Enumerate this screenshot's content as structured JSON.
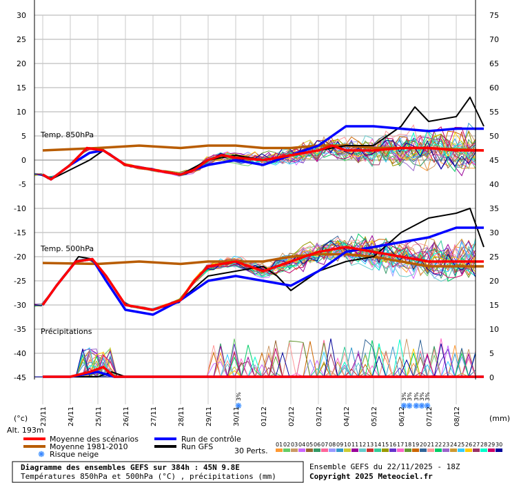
{
  "chart_data": {
    "type": "line",
    "left_axis": {
      "unit": "(°c)",
      "ticks": [
        30,
        25,
        20,
        15,
        10,
        5,
        0,
        -5,
        -10,
        -15,
        -20,
        -25,
        -30,
        -35,
        -40,
        -45
      ]
    },
    "right_axis": {
      "unit": "(mm)",
      "ticks": [
        75,
        70,
        65,
        60,
        55,
        50,
        45,
        40,
        35,
        30,
        25,
        20,
        15,
        10,
        5,
        0
      ]
    },
    "x_dates": [
      "23/11",
      "24/11",
      "25/11",
      "26/11",
      "27/11",
      "28/11",
      "29/11",
      "30/11",
      "01/12",
      "02/12",
      "03/12",
      "04/12",
      "05/12",
      "06/12",
      "07/12",
      "08/12"
    ],
    "panels": {
      "t850": "Temp. 850hPa",
      "t500": "Temp. 500hPa",
      "precip": "Précipitations"
    },
    "altitude": "Alt. 193m",
    "perts_label": "30 Perts.",
    "pert_numbers": [
      "01",
      "02",
      "03",
      "04",
      "05",
      "06",
      "07",
      "08",
      "09",
      "10",
      "11",
      "12",
      "13",
      "14",
      "15",
      "16",
      "17",
      "18",
      "19",
      "20",
      "21",
      "22",
      "23",
      "24",
      "25",
      "26",
      "27",
      "28",
      "29",
      "30"
    ],
    "pert_colors": [
      "#ff9933",
      "#66cc66",
      "#cc9966",
      "#cc66ff",
      "#996633",
      "#339966",
      "#ff6699",
      "#9999ff",
      "#3399cc",
      "#cccc33",
      "#990099",
      "#66cccc",
      "#cc3333",
      "#33cc99",
      "#999900",
      "#6633cc",
      "#ff66cc",
      "#669933",
      "#cc6600",
      "#336699",
      "#ff9999",
      "#00cc66",
      "#9966cc",
      "#cc9933",
      "#33ccff",
      "#ffcc00",
      "#993366",
      "#00ffcc",
      "#cc0066",
      "#000099"
    ],
    "snow_marks": [
      {
        "x_day": 7.1,
        "label": "3%"
      },
      {
        "x_day": 13.1,
        "label": "3%"
      },
      {
        "x_day": 13.3,
        "label": "3%"
      },
      {
        "x_day": 13.55,
        "label": "3%"
      },
      {
        "x_day": 13.75,
        "label": "3%"
      },
      {
        "x_day": 13.95,
        "label": "3%"
      }
    ],
    "series": [
      {
        "name": "Moyenne des scénarios",
        "color": "#ff0000",
        "role": "mean",
        "t850": [
          [
            0,
            -3
          ],
          [
            0.3,
            -4
          ],
          [
            1,
            -1
          ],
          [
            1.6,
            2.5
          ],
          [
            2.2,
            2
          ],
          [
            3,
            -1
          ],
          [
            4,
            -2
          ],
          [
            5,
            -3
          ],
          [
            5.5,
            -2
          ],
          [
            6,
            0
          ],
          [
            6.5,
            1
          ],
          [
            7,
            0.5
          ],
          [
            8,
            0
          ],
          [
            9,
            1
          ],
          [
            10,
            2
          ],
          [
            10.5,
            3
          ],
          [
            11,
            2
          ],
          [
            12,
            2
          ],
          [
            13,
            2.5
          ],
          [
            14,
            2.5
          ],
          [
            15,
            2
          ],
          [
            16,
            2
          ]
        ],
        "t500": [
          [
            0,
            -30
          ],
          [
            0.5,
            -26
          ],
          [
            1.2,
            -21
          ],
          [
            1.8,
            -20.5
          ],
          [
            2.3,
            -24
          ],
          [
            3,
            -30
          ],
          [
            4,
            -31
          ],
          [
            5,
            -29
          ],
          [
            5.5,
            -25
          ],
          [
            6,
            -22
          ],
          [
            7,
            -21
          ],
          [
            8,
            -23
          ],
          [
            9,
            -21
          ],
          [
            10,
            -19
          ],
          [
            11,
            -18
          ],
          [
            12,
            -19
          ],
          [
            13,
            -20
          ],
          [
            14,
            -21
          ],
          [
            15,
            -21
          ],
          [
            16,
            -21
          ]
        ],
        "precip": [
          [
            0,
            0
          ],
          [
            1,
            0
          ],
          [
            1.7,
            1
          ],
          [
            2.2,
            2
          ],
          [
            2.6,
            0
          ],
          [
            3,
            0
          ],
          [
            16,
            0
          ]
        ]
      },
      {
        "name": "Moyenne 1981-2010",
        "color": "#b85c00",
        "role": "climate",
        "t850": [
          [
            0,
            2
          ],
          [
            2,
            2.5
          ],
          [
            3.5,
            3
          ],
          [
            5,
            2.5
          ],
          [
            6,
            3
          ],
          [
            7,
            3
          ],
          [
            8,
            2.5
          ],
          [
            9,
            2.5
          ],
          [
            10,
            3
          ],
          [
            11,
            3
          ],
          [
            12,
            2.5
          ],
          [
            13,
            2.5
          ],
          [
            14,
            2.5
          ],
          [
            16,
            2
          ]
        ],
        "t500": [
          [
            0,
            -21.3
          ],
          [
            2,
            -21.5
          ],
          [
            3.5,
            -21
          ],
          [
            5,
            -21.5
          ],
          [
            6,
            -21
          ],
          [
            7,
            -21
          ],
          [
            8,
            -21
          ],
          [
            9,
            -20
          ],
          [
            10,
            -19.5
          ],
          [
            11,
            -19.5
          ],
          [
            12,
            -20
          ],
          [
            13,
            -21
          ],
          [
            14,
            -22
          ],
          [
            16,
            -22
          ]
        ]
      },
      {
        "name": "Run de contrôle",
        "color": "#0000ff",
        "role": "control",
        "t850": [
          [
            0,
            -3
          ],
          [
            0.3,
            -4
          ],
          [
            1,
            -1
          ],
          [
            1.7,
            1.5
          ],
          [
            2.2,
            2
          ],
          [
            3,
            -1
          ],
          [
            4,
            -2
          ],
          [
            5,
            -3
          ],
          [
            6,
            -1
          ],
          [
            7,
            0
          ],
          [
            8,
            -1
          ],
          [
            9,
            1
          ],
          [
            10,
            3
          ],
          [
            10.5,
            5
          ],
          [
            11,
            7
          ],
          [
            12,
            7
          ],
          [
            13,
            6.5
          ],
          [
            14,
            6
          ],
          [
            15,
            6.5
          ],
          [
            16,
            6.5
          ]
        ],
        "t500": [
          [
            0,
            -30
          ],
          [
            0.5,
            -26
          ],
          [
            1.2,
            -21
          ],
          [
            1.8,
            -20.5
          ],
          [
            2.3,
            -25
          ],
          [
            3,
            -31
          ],
          [
            4,
            -32
          ],
          [
            5,
            -29
          ],
          [
            5.5,
            -27
          ],
          [
            6,
            -25
          ],
          [
            7,
            -24
          ],
          [
            8,
            -25
          ],
          [
            9,
            -26
          ],
          [
            10,
            -23
          ],
          [
            11,
            -19
          ],
          [
            12,
            -18
          ],
          [
            13,
            -17
          ],
          [
            14,
            -16
          ],
          [
            15,
            -14
          ],
          [
            16,
            -14
          ]
        ],
        "precip": [
          [
            0,
            0
          ],
          [
            1,
            0
          ],
          [
            2,
            1
          ],
          [
            2.6,
            0
          ],
          [
            16,
            0
          ]
        ]
      },
      {
        "name": "Run GFS",
        "color": "#000000",
        "role": "gfs",
        "t850": [
          [
            0,
            -3
          ],
          [
            0.3,
            -4
          ],
          [
            1,
            -2
          ],
          [
            1.7,
            0
          ],
          [
            2.2,
            2
          ],
          [
            3,
            -1
          ],
          [
            4,
            -2
          ],
          [
            5,
            -3
          ],
          [
            6,
            0
          ],
          [
            7,
            1
          ],
          [
            8,
            0
          ],
          [
            9,
            1
          ],
          [
            10,
            2
          ],
          [
            11,
            3
          ],
          [
            12,
            3
          ],
          [
            13,
            7
          ],
          [
            13.5,
            11
          ],
          [
            14,
            8
          ],
          [
            15,
            9
          ],
          [
            15.5,
            13
          ],
          [
            16,
            7
          ]
        ],
        "t500": [
          [
            0,
            -30
          ],
          [
            0.5,
            -26
          ],
          [
            1.3,
            -20
          ],
          [
            1.8,
            -20.5
          ],
          [
            2.3,
            -24
          ],
          [
            3,
            -30
          ],
          [
            4,
            -31
          ],
          [
            5,
            -29
          ],
          [
            6,
            -24
          ],
          [
            7,
            -23
          ],
          [
            8,
            -22
          ],
          [
            8.5,
            -24
          ],
          [
            9,
            -27
          ],
          [
            10,
            -23
          ],
          [
            11,
            -21
          ],
          [
            12,
            -20
          ],
          [
            13,
            -15
          ],
          [
            14,
            -12
          ],
          [
            15,
            -11
          ],
          [
            15.5,
            -10
          ],
          [
            16,
            -18
          ]
        ],
        "precip": [
          [
            0,
            0
          ],
          [
            2,
            0
          ],
          [
            2.5,
            1
          ],
          [
            3,
            0
          ],
          [
            16,
            0
          ]
        ]
      }
    ]
  },
  "legend": {
    "mean": "Moyenne des scénarios",
    "climate": "Moyenne 1981-2010",
    "snow": "Risque neige",
    "control": "Run de contrôle",
    "gfs": "Run GFS"
  },
  "footer": {
    "title": "Diagramme des ensembles GEFS sur 384h : 45N 9.8E",
    "subtitle": "Températures 850hPa et 500hPa (°C) , précipitations (mm)",
    "ensemble": "Ensemble GEFS du 22/11/2025 - 18Z",
    "copyright": "Copyright 2025 Meteociel.fr"
  }
}
